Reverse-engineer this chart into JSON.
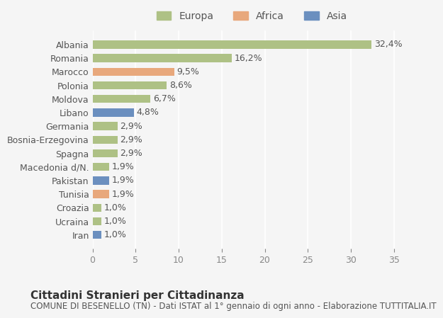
{
  "categories": [
    "Iran",
    "Ucraina",
    "Croazia",
    "Tunisia",
    "Pakistan",
    "Macedonia d/N.",
    "Spagna",
    "Bosnia-Erzegovina",
    "Germania",
    "Libano",
    "Moldova",
    "Polonia",
    "Marocco",
    "Romania",
    "Albania"
  ],
  "values": [
    1.0,
    1.0,
    1.0,
    1.9,
    1.9,
    1.9,
    2.9,
    2.9,
    2.9,
    4.8,
    6.7,
    8.6,
    9.5,
    16.2,
    32.4
  ],
  "labels": [
    "1,0%",
    "1,0%",
    "1,0%",
    "1,9%",
    "1,9%",
    "1,9%",
    "2,9%",
    "2,9%",
    "2,9%",
    "4,8%",
    "6,7%",
    "8,6%",
    "9,5%",
    "16,2%",
    "32,4%"
  ],
  "continent": [
    "Asia",
    "Europa",
    "Europa",
    "Africa",
    "Asia",
    "Europa",
    "Europa",
    "Europa",
    "Europa",
    "Asia",
    "Europa",
    "Europa",
    "Africa",
    "Europa",
    "Europa"
  ],
  "color_europa": "#aec185",
  "color_africa": "#e8a87c",
  "color_asia": "#6b8fbf",
  "background_color": "#f5f5f5",
  "title": "Cittadini Stranieri per Cittadinanza",
  "subtitle": "COMUNE DI BESENELLO (TN) - Dati ISTAT al 1° gennaio di ogni anno - Elaborazione TUTTITALIA.IT",
  "xlim": [
    0,
    37
  ],
  "xticks": [
    0,
    5,
    10,
    15,
    20,
    25,
    30,
    35
  ],
  "legend_labels": [
    "Europa",
    "Africa",
    "Asia"
  ],
  "bar_height": 0.6,
  "label_fontsize": 9,
  "tick_fontsize": 9,
  "title_fontsize": 11,
  "subtitle_fontsize": 8.5,
  "text_color": "#555555",
  "xtick_color": "#888888"
}
